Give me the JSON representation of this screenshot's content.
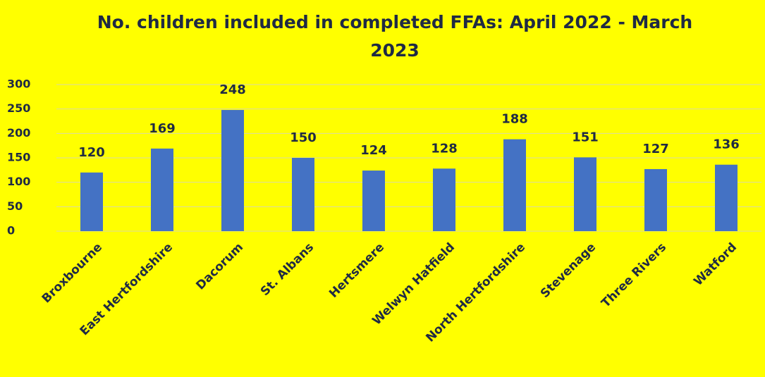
{
  "chart_data": {
    "type": "bar",
    "title": "No. children included in completed FFAs: April 2022 - March 2023",
    "categories": [
      "Broxbourne",
      "East Hertfordshire",
      "Dacorum",
      "St. Albans",
      "Hertsmere",
      "Welwyn Hatfield",
      "North Hertfordshire",
      "Stevenage",
      "Three Rivers",
      "Watford"
    ],
    "values": [
      120,
      169,
      248,
      150,
      124,
      128,
      188,
      151,
      127,
      136
    ],
    "color": "#4472c4",
    "ylim": [
      0,
      300
    ],
    "yticks": [
      0,
      50,
      100,
      150,
      200,
      250,
      300
    ],
    "grid": true
  }
}
